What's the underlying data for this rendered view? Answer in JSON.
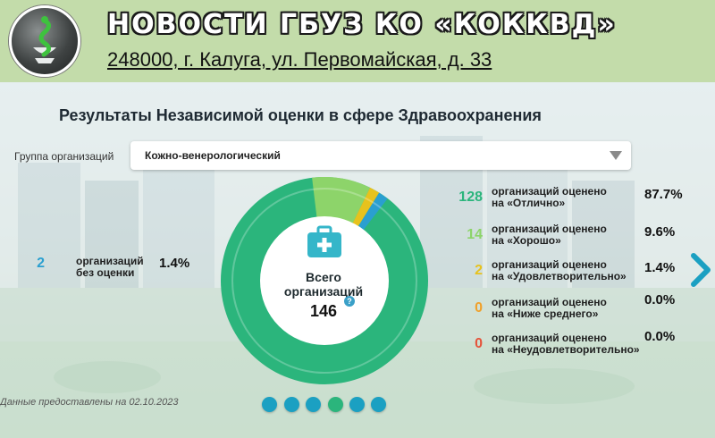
{
  "header": {
    "title": "НОВОСТИ ГБУЗ КО «КОККВД»",
    "address": "248000, г. Калуга, ул. Первомайская, д. 33",
    "logo_icon": "snake-bowl-logo-icon"
  },
  "panel": {
    "title": "Результаты Независимой оценки в сфере Здравоохранения",
    "group_label": "Группа организаций",
    "group_value": "Кожно-венерологический",
    "center_title": "Всего организаций",
    "center_count": "146",
    "footnote": "Данные предоставлены на 02.10.2023"
  },
  "stats": {
    "no_rating": {
      "count": "2",
      "label_line1": "организаций",
      "label_line2": "без оценки",
      "percent": "1.4%",
      "color": "#2a9fd0"
    },
    "excellent": {
      "count": "128",
      "label_line1": "организаций оценено",
      "label_line2": "на «Отлично»",
      "percent": "87.7%",
      "color": "#2bb57c"
    },
    "good": {
      "count": "14",
      "label_line1": "организаций оценено",
      "label_line2": "на «Хорошо»",
      "percent": "9.6%",
      "color": "#8dd46a"
    },
    "satisfactory": {
      "count": "2",
      "label_line1": "организаций оценено",
      "label_line2": "на «Удовлетворительно»",
      "percent": "1.4%",
      "color": "#e7c21d"
    },
    "below_average": {
      "count": "0",
      "label_line1": "организаций оценено",
      "label_line2": "на «Ниже среднего»",
      "percent": "0.0%",
      "color": "#f0a02a"
    },
    "unsatisfactory": {
      "count": "0",
      "label_line1": "организаций оценено",
      "label_line2": "на «Неудовлетворительно»",
      "percent": "0.0%",
      "color": "#e5533a"
    }
  },
  "carousel": {
    "pages": 6,
    "active_page": 4
  },
  "colors": {
    "accent": "#1ba0c2",
    "header_bg": "#c3dcaa"
  },
  "icons": {
    "center": "medical-kit-icon",
    "next": "chevron-right-icon",
    "info": "info-icon"
  }
}
